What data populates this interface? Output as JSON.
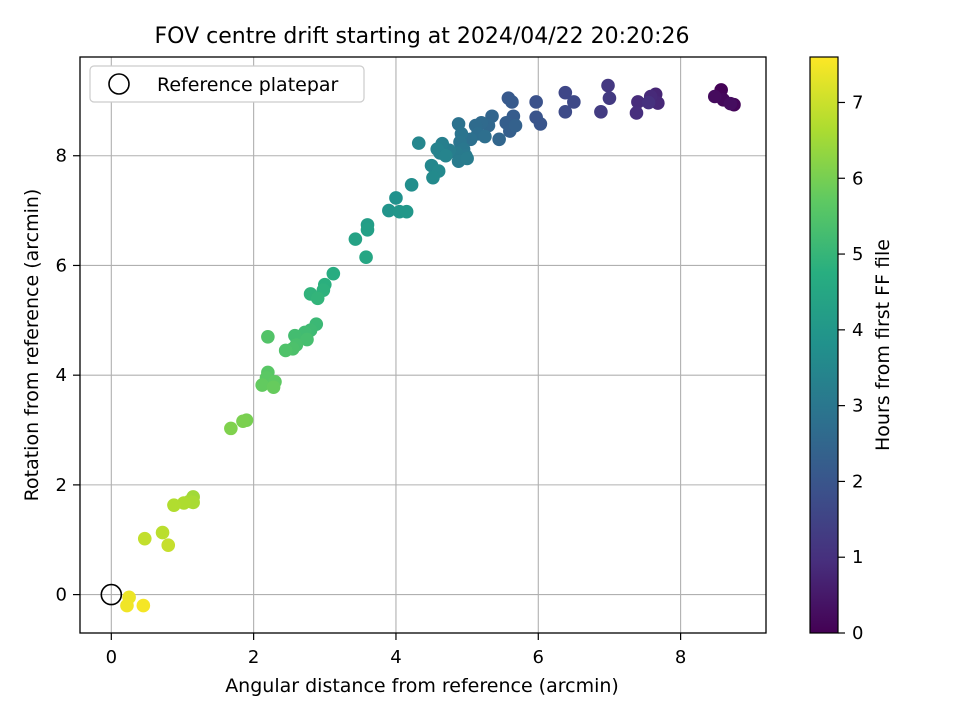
{
  "chart_data": {
    "type": "scatter",
    "title": "FOV centre drift starting at 2024/04/22 20:20:26",
    "xlabel": "Angular distance from reference (arcmin)",
    "ylabel": "Rotation from reference (arcmin)",
    "xlim": [
      -0.44,
      9.2
    ],
    "ylim": [
      -0.7,
      9.8
    ],
    "xticks": [
      0,
      2,
      4,
      6,
      8
    ],
    "yticks": [
      0,
      2,
      4,
      6,
      8
    ],
    "grid": true,
    "legend": {
      "placement": "top-left",
      "entries": [
        "Reference platepar"
      ]
    },
    "colorbar": {
      "label": "Hours from first FF file",
      "range": [
        0,
        7.6
      ],
      "ticks": [
        0,
        1,
        2,
        3,
        4,
        5,
        6,
        7
      ],
      "colormap": "viridis"
    },
    "reference_point": {
      "name": "Reference platepar",
      "x": 0,
      "y": 0,
      "marker": "open-circle"
    },
    "series": [
      {
        "color_by": "hours",
        "points": [
          {
            "x": 8.57,
            "y": 9.2,
            "c": 0.05
          },
          {
            "x": 8.75,
            "y": 8.93,
            "c": 0.1
          },
          {
            "x": 8.6,
            "y": 9.02,
            "c": 0.15
          },
          {
            "x": 8.48,
            "y": 9.08,
            "c": 0.2
          },
          {
            "x": 8.7,
            "y": 8.95,
            "c": 0.25
          },
          {
            "x": 7.65,
            "y": 9.12,
            "c": 0.75
          },
          {
            "x": 7.68,
            "y": 8.96,
            "c": 0.8
          },
          {
            "x": 7.58,
            "y": 9.08,
            "c": 0.85
          },
          {
            "x": 7.4,
            "y": 8.98,
            "c": 0.9
          },
          {
            "x": 7.38,
            "y": 8.78,
            "c": 0.95
          },
          {
            "x": 7.55,
            "y": 8.97,
            "c": 1.0
          },
          {
            "x": 6.98,
            "y": 9.28,
            "c": 1.2
          },
          {
            "x": 7.0,
            "y": 9.05,
            "c": 1.25
          },
          {
            "x": 6.88,
            "y": 8.8,
            "c": 1.3
          },
          {
            "x": 6.38,
            "y": 9.15,
            "c": 1.6
          },
          {
            "x": 6.5,
            "y": 8.98,
            "c": 1.65
          },
          {
            "x": 6.38,
            "y": 8.8,
            "c": 1.7
          },
          {
            "x": 5.97,
            "y": 8.98,
            "c": 1.9
          },
          {
            "x": 5.97,
            "y": 8.7,
            "c": 1.95
          },
          {
            "x": 6.03,
            "y": 8.58,
            "c": 2.0
          },
          {
            "x": 5.58,
            "y": 9.05,
            "c": 2.1
          },
          {
            "x": 5.63,
            "y": 8.98,
            "c": 2.15
          },
          {
            "x": 5.65,
            "y": 8.72,
            "c": 2.2
          },
          {
            "x": 5.55,
            "y": 8.6,
            "c": 2.25
          },
          {
            "x": 5.6,
            "y": 8.45,
            "c": 2.3
          },
          {
            "x": 5.68,
            "y": 8.55,
            "c": 2.35
          },
          {
            "x": 5.35,
            "y": 8.72,
            "c": 2.45
          },
          {
            "x": 5.45,
            "y": 8.3,
            "c": 2.5
          },
          {
            "x": 5.3,
            "y": 8.55,
            "c": 2.55
          },
          {
            "x": 5.2,
            "y": 8.6,
            "c": 2.6
          },
          {
            "x": 5.12,
            "y": 8.55,
            "c": 2.65
          },
          {
            "x": 5.15,
            "y": 8.4,
            "c": 2.7
          },
          {
            "x": 5.25,
            "y": 8.35,
            "c": 2.75
          },
          {
            "x": 5.05,
            "y": 8.3,
            "c": 2.8
          },
          {
            "x": 4.88,
            "y": 8.58,
            "c": 2.85
          },
          {
            "x": 4.92,
            "y": 8.4,
            "c": 2.9
          },
          {
            "x": 4.9,
            "y": 8.25,
            "c": 2.95
          },
          {
            "x": 4.95,
            "y": 8.12,
            "c": 3.0
          },
          {
            "x": 4.98,
            "y": 8.0,
            "c": 3.05
          },
          {
            "x": 4.85,
            "y": 8.05,
            "c": 3.1
          },
          {
            "x": 4.88,
            "y": 7.9,
            "c": 3.12
          },
          {
            "x": 5.0,
            "y": 7.95,
            "c": 3.15
          },
          {
            "x": 4.75,
            "y": 8.1,
            "c": 3.2
          },
          {
            "x": 4.65,
            "y": 8.22,
            "c": 3.25
          },
          {
            "x": 4.62,
            "y": 8.05,
            "c": 3.3
          },
          {
            "x": 4.58,
            "y": 8.12,
            "c": 3.35
          },
          {
            "x": 4.7,
            "y": 8.0,
            "c": 3.4
          },
          {
            "x": 4.32,
            "y": 8.23,
            "c": 3.45
          },
          {
            "x": 4.5,
            "y": 7.82,
            "c": 3.5
          },
          {
            "x": 4.6,
            "y": 7.72,
            "c": 3.55
          },
          {
            "x": 4.52,
            "y": 7.6,
            "c": 3.6
          },
          {
            "x": 4.22,
            "y": 7.47,
            "c": 3.7
          },
          {
            "x": 4.0,
            "y": 7.23,
            "c": 3.8
          },
          {
            "x": 3.9,
            "y": 7.0,
            "c": 3.9
          },
          {
            "x": 4.05,
            "y": 6.98,
            "c": 3.95
          },
          {
            "x": 4.15,
            "y": 6.98,
            "c": 4.0
          },
          {
            "x": 3.6,
            "y": 6.74,
            "c": 4.2
          },
          {
            "x": 3.6,
            "y": 6.65,
            "c": 4.25
          },
          {
            "x": 3.43,
            "y": 6.48,
            "c": 4.35
          },
          {
            "x": 3.58,
            "y": 6.15,
            "c": 4.5
          },
          {
            "x": 3.12,
            "y": 5.85,
            "c": 4.7
          },
          {
            "x": 3.0,
            "y": 5.65,
            "c": 4.8
          },
          {
            "x": 2.98,
            "y": 5.55,
            "c": 4.85
          },
          {
            "x": 2.8,
            "y": 5.48,
            "c": 4.9
          },
          {
            "x": 2.9,
            "y": 5.4,
            "c": 4.95
          },
          {
            "x": 2.88,
            "y": 4.93,
            "c": 5.1
          },
          {
            "x": 2.8,
            "y": 4.82,
            "c": 5.15
          },
          {
            "x": 2.72,
            "y": 4.78,
            "c": 5.2
          },
          {
            "x": 2.58,
            "y": 4.72,
            "c": 5.25
          },
          {
            "x": 2.75,
            "y": 4.65,
            "c": 5.3
          },
          {
            "x": 2.6,
            "y": 4.55,
            "c": 5.35
          },
          {
            "x": 2.55,
            "y": 4.48,
            "c": 5.4
          },
          {
            "x": 2.45,
            "y": 4.45,
            "c": 5.45
          },
          {
            "x": 2.2,
            "y": 4.7,
            "c": 5.5
          },
          {
            "x": 2.2,
            "y": 4.05,
            "c": 5.6
          },
          {
            "x": 2.18,
            "y": 3.95,
            "c": 5.65
          },
          {
            "x": 2.3,
            "y": 3.88,
            "c": 5.7
          },
          {
            "x": 2.12,
            "y": 3.82,
            "c": 5.75
          },
          {
            "x": 2.28,
            "y": 3.78,
            "c": 5.8
          },
          {
            "x": 1.9,
            "y": 3.18,
            "c": 6.0
          },
          {
            "x": 1.85,
            "y": 3.16,
            "c": 6.05
          },
          {
            "x": 1.68,
            "y": 3.03,
            "c": 6.1
          },
          {
            "x": 1.15,
            "y": 1.78,
            "c": 6.5
          },
          {
            "x": 1.1,
            "y": 1.7,
            "c": 6.55
          },
          {
            "x": 1.15,
            "y": 1.68,
            "c": 6.6
          },
          {
            "x": 1.02,
            "y": 1.67,
            "c": 6.65
          },
          {
            "x": 0.88,
            "y": 1.63,
            "c": 6.7
          },
          {
            "x": 0.72,
            "y": 1.13,
            "c": 6.8
          },
          {
            "x": 0.47,
            "y": 1.02,
            "c": 6.9
          },
          {
            "x": 0.8,
            "y": 0.9,
            "c": 6.95
          },
          {
            "x": 0.25,
            "y": -0.05,
            "c": 7.4
          },
          {
            "x": 0.22,
            "y": -0.2,
            "c": 7.45
          },
          {
            "x": 0.45,
            "y": -0.2,
            "c": 7.5
          }
        ]
      }
    ]
  }
}
